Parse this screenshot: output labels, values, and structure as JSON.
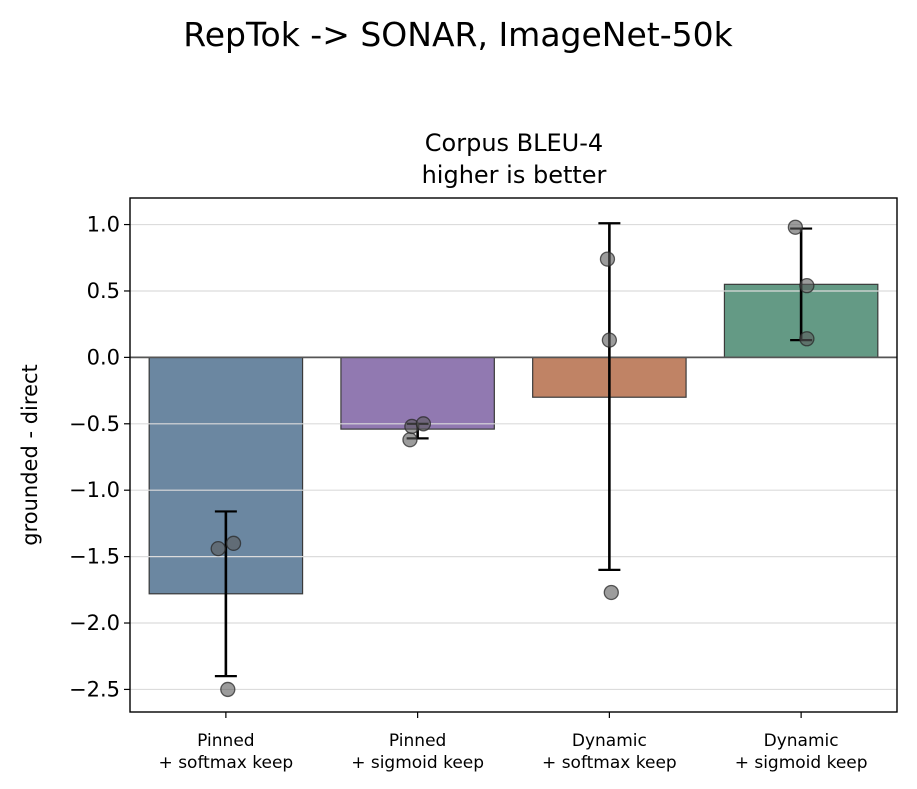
{
  "figure_title": "RepTok -> SONAR, ImageNet-50k",
  "chart_data": {
    "type": "bar",
    "title": "Corpus BLEU-4",
    "subtitle": "higher is better",
    "xlabel": "",
    "ylabel": "grounded - direct",
    "ylim": [
      -2.67,
      1.2
    ],
    "yticks": [
      1.0,
      0.5,
      0.0,
      -0.5,
      -1.0,
      -1.5,
      -2.0,
      -2.5
    ],
    "ytick_labels": [
      "1.0",
      "0.5",
      "0.0",
      "−0.5",
      "−1.0",
      "−1.5",
      "−2.0",
      "−2.5"
    ],
    "grid": "horizontal",
    "zero_line": true,
    "categories": [
      [
        "Pinned",
        "+ softmax keep"
      ],
      [
        "Pinned",
        "+ sigmoid keep"
      ],
      [
        "Dynamic",
        "+ softmax keep"
      ],
      [
        "Dynamic",
        "+ sigmoid keep"
      ]
    ],
    "values": [
      -1.78,
      -0.54,
      -0.3,
      0.55
    ],
    "error_bars": [
      [
        -2.4,
        -1.16
      ],
      [
        -0.61,
        -0.5
      ],
      [
        -1.6,
        1.01
      ],
      [
        0.13,
        0.97
      ]
    ],
    "points": [
      [
        {
          "x_offset": -0.04,
          "y": -1.44
        },
        {
          "x_offset": 0.04,
          "y": -1.4
        },
        {
          "x_offset": 0.01,
          "y": -2.5
        }
      ],
      [
        {
          "x_offset": -0.04,
          "y": -0.62
        },
        {
          "x_offset": -0.03,
          "y": -0.52
        },
        {
          "x_offset": 0.03,
          "y": -0.5
        }
      ],
      [
        {
          "x_offset": -0.01,
          "y": 0.74
        },
        {
          "x_offset": 0.0,
          "y": 0.13
        },
        {
          "x_offset": 0.01,
          "y": -1.77
        }
      ],
      [
        {
          "x_offset": -0.03,
          "y": 0.98
        },
        {
          "x_offset": 0.03,
          "y": 0.54
        },
        {
          "x_offset": 0.03,
          "y": 0.14
        }
      ]
    ],
    "colors": [
      "#6b87a1",
      "#9179b1",
      "#c08365",
      "#649a85"
    ]
  }
}
